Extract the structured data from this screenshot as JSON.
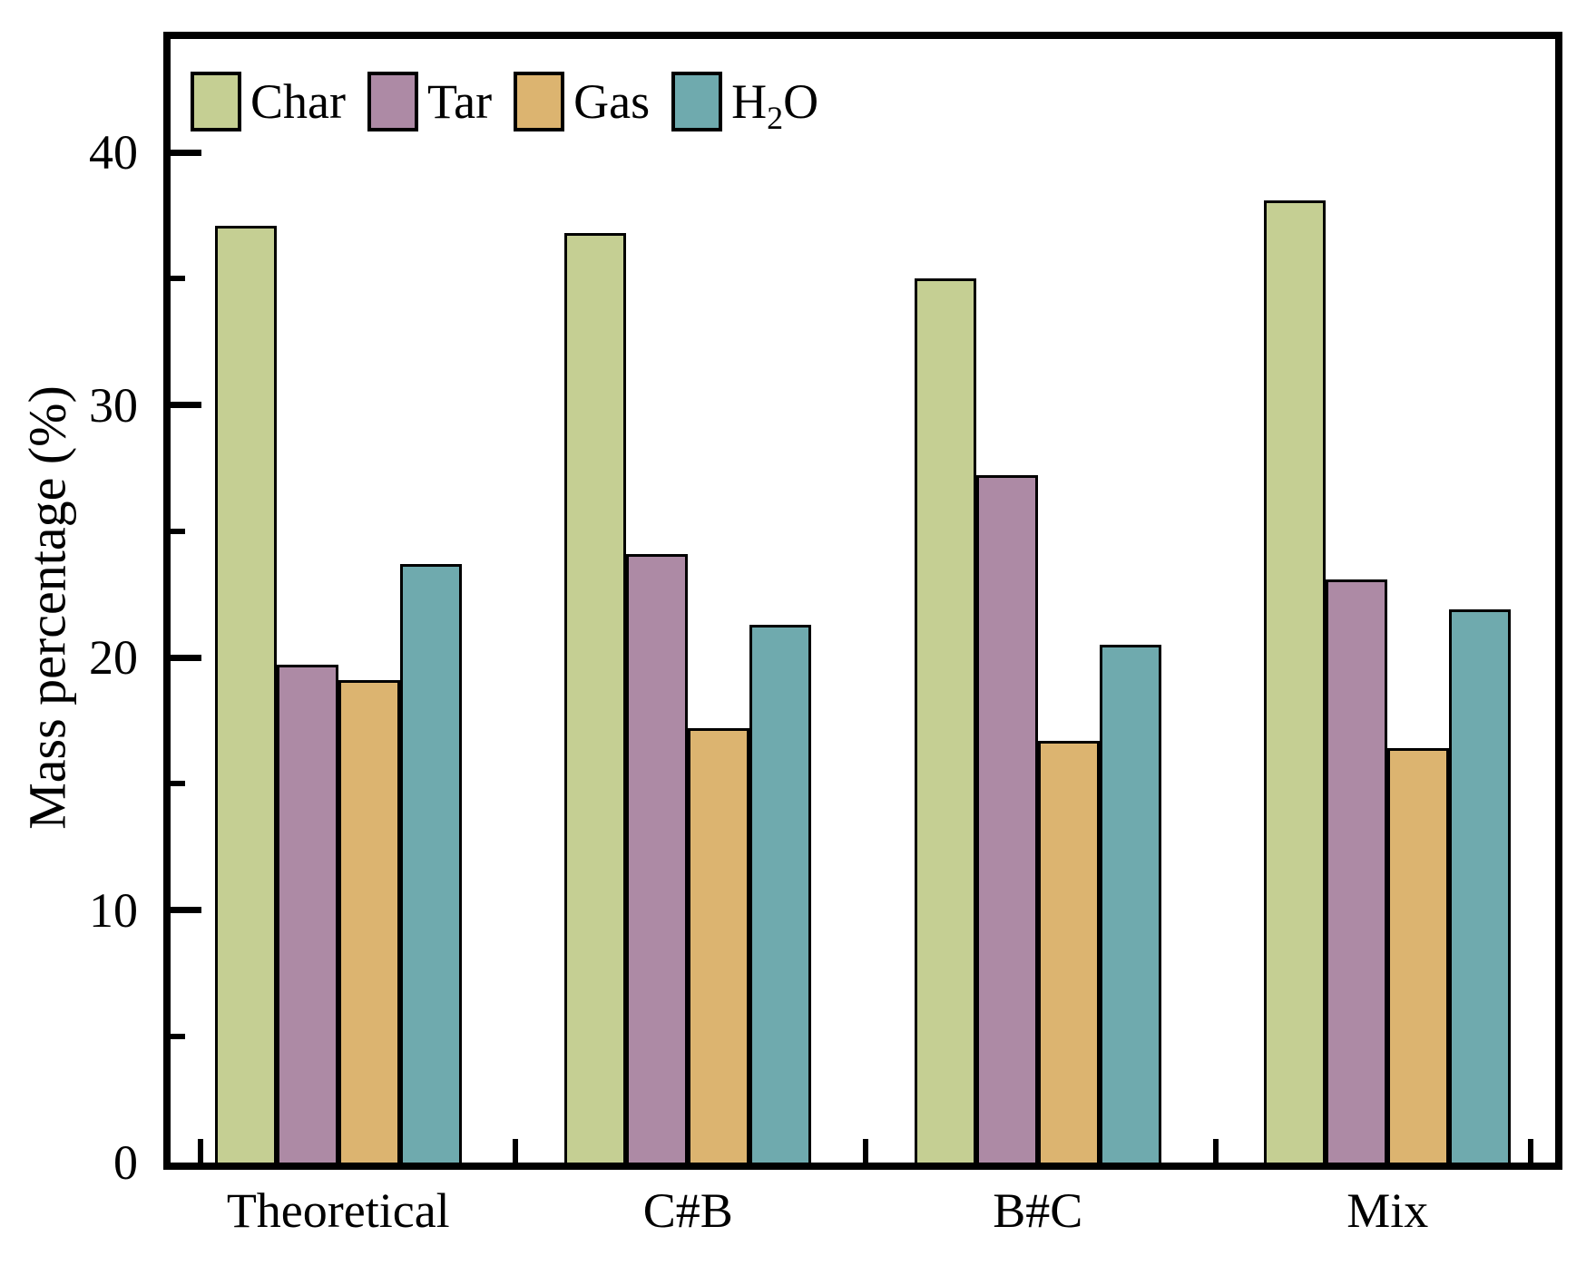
{
  "chart_data": {
    "type": "bar",
    "title": "",
    "categories": [
      "Theoretical",
      "C#B",
      "B#C",
      "Mix"
    ],
    "series": [
      {
        "name": "Char",
        "color": "#c5cf93",
        "values": [
          37.1,
          36.8,
          35.0,
          38.1
        ]
      },
      {
        "name": "Tar",
        "color": "#ad8aa5",
        "values": [
          19.7,
          24.1,
          27.2,
          23.1
        ]
      },
      {
        "name": "Gas",
        "color": "#dcb470",
        "values": [
          19.1,
          17.2,
          16.7,
          16.4
        ]
      },
      {
        "name": "H2O",
        "color": "#6faaae",
        "values": [
          23.7,
          21.3,
          20.5,
          21.9
        ]
      }
    ],
    "xlabel": "",
    "ylabel": "Mass percentage (%)",
    "ylim": [
      0,
      45
    ],
    "y_major_ticks": [
      0,
      10,
      20,
      30,
      40
    ],
    "y_minor_ticks": [
      5,
      15,
      25,
      35
    ],
    "grid": false,
    "legend_position": "top-left-horizontal",
    "bar_outline_color": "#000000",
    "frame_color": "#000000"
  },
  "legend": {
    "items": [
      {
        "id": "char",
        "label": "Char",
        "color": "#c5cf93"
      },
      {
        "id": "tar",
        "label": "Tar",
        "color": "#ad8aa5"
      },
      {
        "id": "gas",
        "label": "Gas",
        "color": "#dcb470"
      },
      {
        "id": "h2o",
        "label_main": "H",
        "label_sub": "2",
        "label_tail": "O",
        "color": "#6faaae"
      }
    ]
  }
}
